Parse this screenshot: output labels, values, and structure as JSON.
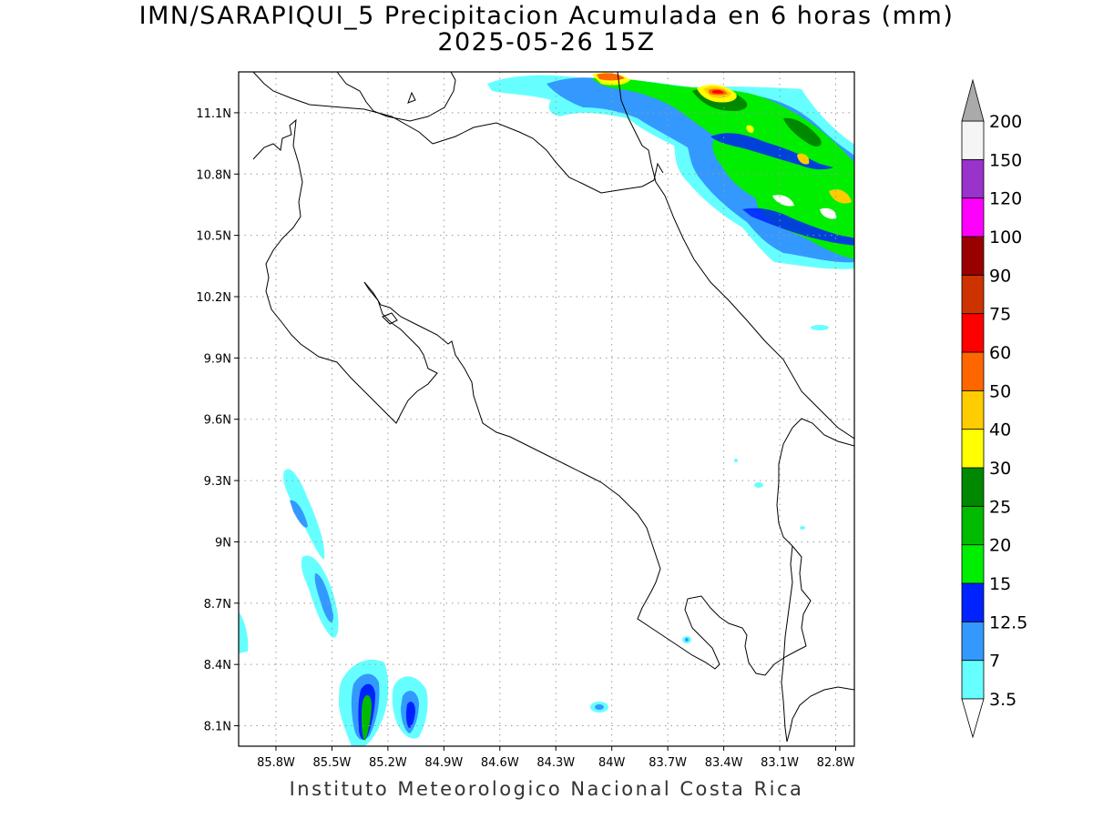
{
  "title": {
    "line1": "IMN/SARAPIQUI_5 Precipitacion Acumulada en 6 horas (mm)",
    "line2": "2025-05-26 15Z"
  },
  "footer": "Instituto Meteorologico Nacional Costa Rica",
  "map": {
    "lon_range": [
      -86.0,
      -82.7
    ],
    "lat_range": [
      8.0,
      11.3
    ],
    "lon_ticks": [
      {
        "value": -85.8,
        "label": "85.8W"
      },
      {
        "value": -85.5,
        "label": "85.5W"
      },
      {
        "value": -85.2,
        "label": "85.2W"
      },
      {
        "value": -84.9,
        "label": "84.9W"
      },
      {
        "value": -84.6,
        "label": "84.6W"
      },
      {
        "value": -84.3,
        "label": "84.3W"
      },
      {
        "value": -84.0,
        "label": "84W"
      },
      {
        "value": -83.7,
        "label": "83.7W"
      },
      {
        "value": -83.4,
        "label": "83.4W"
      },
      {
        "value": -83.1,
        "label": "83.1W"
      },
      {
        "value": -82.8,
        "label": "82.8W"
      }
    ],
    "lat_ticks": [
      {
        "value": 8.1,
        "label": "8.1N"
      },
      {
        "value": 8.4,
        "label": "8.4N"
      },
      {
        "value": 8.7,
        "label": "8.7N"
      },
      {
        "value": 9.0,
        "label": "9N"
      },
      {
        "value": 9.3,
        "label": "9.3N"
      },
      {
        "value": 9.6,
        "label": "9.6N"
      },
      {
        "value": 9.9,
        "label": "9.9N"
      },
      {
        "value": 10.2,
        "label": "10.2N"
      },
      {
        "value": 10.5,
        "label": "10.5N"
      },
      {
        "value": 10.8,
        "label": "10.8N"
      },
      {
        "value": 11.1,
        "label": "11.1N"
      }
    ],
    "grid": true
  },
  "colorbar": {
    "levels": [
      "3.5",
      "7",
      "12.5",
      "15",
      "20",
      "25",
      "30",
      "40",
      "50",
      "60",
      "75",
      "90",
      "100",
      "120",
      "150",
      "200"
    ],
    "colors": [
      "#66ffff",
      "#3399ff",
      "#0022ff",
      "#00ee00",
      "#00bb00",
      "#008800",
      "#ffff00",
      "#ffcc00",
      "#ff6600",
      "#ff0000",
      "#cc3300",
      "#990000",
      "#ff00ff",
      "#9933cc",
      "#f5f5f5"
    ],
    "max_arrow_color": "#aaaaaa",
    "min_arrow_color": "#ffffff"
  }
}
